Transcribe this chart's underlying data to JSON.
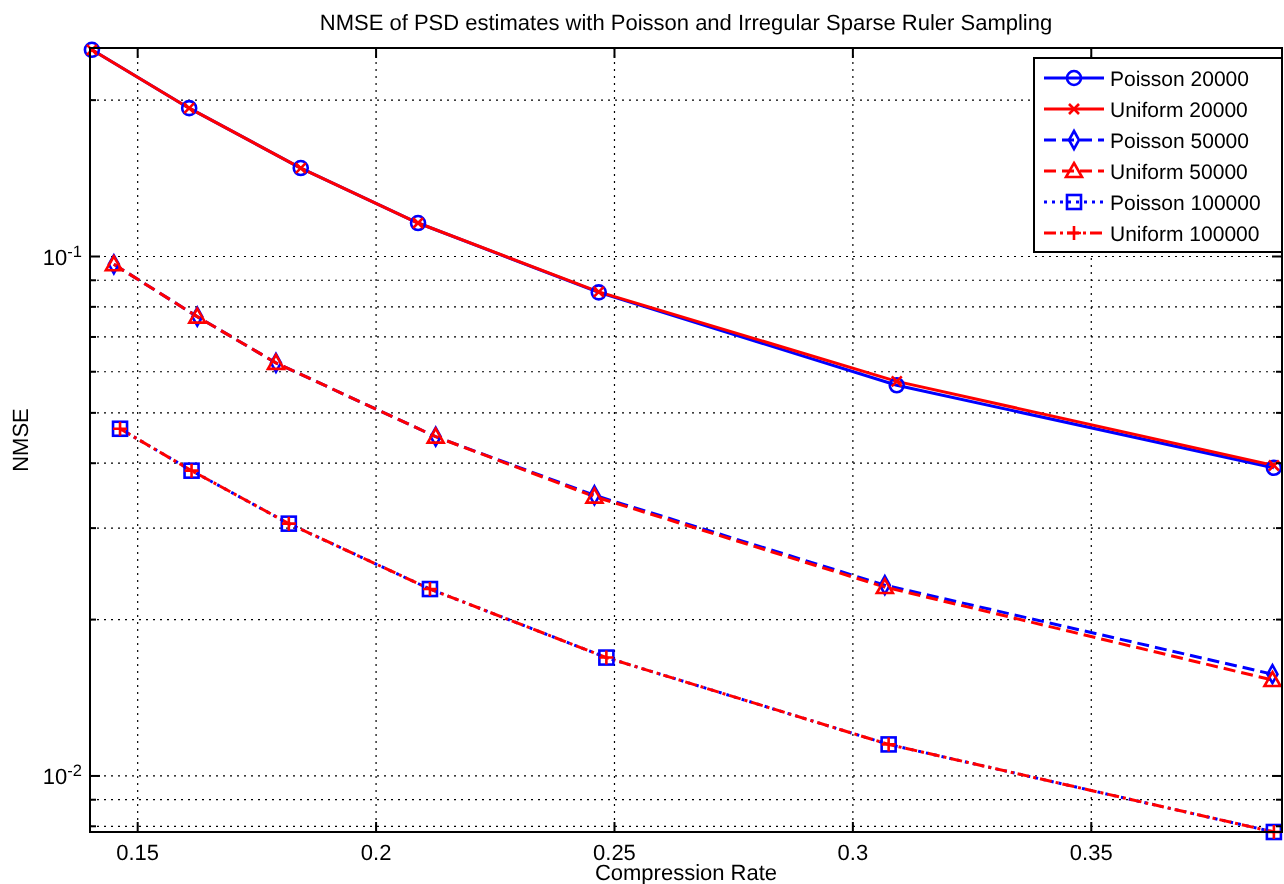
{
  "chart_data": {
    "type": "line",
    "title": "NMSE of PSD estimates with Poisson and Irregular Sparse Ruler Sampling",
    "xlabel": "Compression Rate",
    "ylabel": "NMSE",
    "log": "y",
    "grid": true,
    "legend": "top right",
    "xlim": [
      0.14,
      0.39
    ],
    "xticks": [
      0.15,
      0.2,
      0.25,
      0.3,
      0.35
    ],
    "ylim": [
      0.0078,
      0.252
    ],
    "yticks": [
      {
        "value": 0.008,
        "label": null
      },
      {
        "value": 0.009,
        "label": null
      },
      {
        "value": 0.01,
        "label": "10$^{-2}$"
      },
      {
        "value": 0.02,
        "label": null
      },
      {
        "value": 0.03,
        "label": null
      },
      {
        "value": 0.04,
        "label": null
      },
      {
        "value": 0.05,
        "label": null
      },
      {
        "value": 0.06,
        "label": null
      },
      {
        "value": 0.07,
        "label": null
      },
      {
        "value": 0.08,
        "label": null
      },
      {
        "value": 0.09,
        "label": null
      },
      {
        "value": 0.1,
        "label": "10$^{-1}$"
      },
      {
        "value": 0.2,
        "label": null
      }
    ],
    "series": [
      {
        "name": "Poisson 20000",
        "color": "#0000ff",
        "marker": "circle",
        "line_style": "solid",
        "x": [
          0.1404,
          0.1608,
          0.1842,
          0.2088,
          0.2467,
          0.3092,
          0.3883
        ],
        "values": [
          0.25,
          0.193,
          0.148,
          0.116,
          0.0853,
          0.0565,
          0.0392
        ]
      },
      {
        "name": "Uniform 20000",
        "color": "#ff0000",
        "marker": "cross",
        "line_style": "solid",
        "x": [
          0.1404,
          0.1608,
          0.1842,
          0.2088,
          0.2467,
          0.3092,
          0.3883
        ],
        "values": [
          0.25,
          0.193,
          0.148,
          0.116,
          0.0855,
          0.0575,
          0.0396
        ]
      },
      {
        "name": "Poisson 50000",
        "color": "#0000ff",
        "marker": "diamond",
        "line_style": "dashed",
        "x": [
          0.145,
          0.1625,
          0.179,
          0.2125,
          0.2458,
          0.3067,
          0.388
        ],
        "values": [
          0.0966,
          0.0766,
          0.0624,
          0.045,
          0.0347,
          0.0233,
          0.0157
        ]
      },
      {
        "name": "Uniform 50000",
        "color": "#ff0000",
        "marker": "triangle",
        "line_style": "dashed",
        "x": [
          0.145,
          0.1625,
          0.179,
          0.2125,
          0.2458,
          0.3067,
          0.388
        ],
        "values": [
          0.0966,
          0.0766,
          0.0624,
          0.045,
          0.0345,
          0.0231,
          0.0153
        ]
      },
      {
        "name": "Poisson 100000",
        "color": "#0000ff",
        "marker": "square",
        "line_style": "dotted",
        "x": [
          0.1463,
          0.1613,
          0.1817,
          0.2113,
          0.2483,
          0.3075,
          0.3883
        ],
        "values": [
          0.0466,
          0.0387,
          0.0306,
          0.0229,
          0.0169,
          0.0115,
          0.0078
        ]
      },
      {
        "name": "Uniform 100000",
        "color": "#ff0000",
        "marker": "plus",
        "line_style": "dashdot",
        "x": [
          0.1463,
          0.1613,
          0.1817,
          0.2113,
          0.2483,
          0.3075,
          0.3883
        ],
        "values": [
          0.0466,
          0.0387,
          0.0306,
          0.0229,
          0.0169,
          0.0115,
          0.0078
        ]
      }
    ]
  }
}
